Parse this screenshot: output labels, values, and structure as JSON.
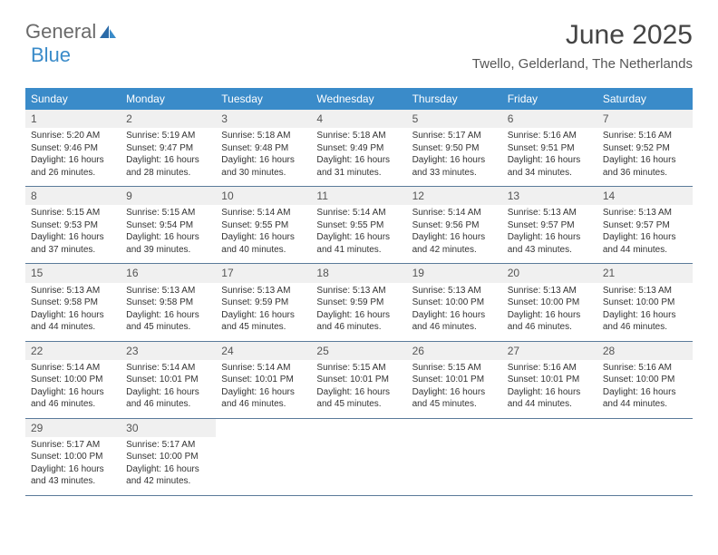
{
  "brand": {
    "part1": "General",
    "part2": "Blue"
  },
  "title": "June 2025",
  "location": "Twello, Gelderland, The Netherlands",
  "colors": {
    "header_bg": "#3a8bc9",
    "header_text": "#ffffff",
    "row_border": "#5a7a9a",
    "daynum_bg": "#f0f0f0",
    "text": "#333333"
  },
  "day_names": [
    "Sunday",
    "Monday",
    "Tuesday",
    "Wednesday",
    "Thursday",
    "Friday",
    "Saturday"
  ],
  "days": [
    {
      "n": "1",
      "sr": "5:20 AM",
      "ss": "9:46 PM",
      "dl": "16 hours and 26 minutes."
    },
    {
      "n": "2",
      "sr": "5:19 AM",
      "ss": "9:47 PM",
      "dl": "16 hours and 28 minutes."
    },
    {
      "n": "3",
      "sr": "5:18 AM",
      "ss": "9:48 PM",
      "dl": "16 hours and 30 minutes."
    },
    {
      "n": "4",
      "sr": "5:18 AM",
      "ss": "9:49 PM",
      "dl": "16 hours and 31 minutes."
    },
    {
      "n": "5",
      "sr": "5:17 AM",
      "ss": "9:50 PM",
      "dl": "16 hours and 33 minutes."
    },
    {
      "n": "6",
      "sr": "5:16 AM",
      "ss": "9:51 PM",
      "dl": "16 hours and 34 minutes."
    },
    {
      "n": "7",
      "sr": "5:16 AM",
      "ss": "9:52 PM",
      "dl": "16 hours and 36 minutes."
    },
    {
      "n": "8",
      "sr": "5:15 AM",
      "ss": "9:53 PM",
      "dl": "16 hours and 37 minutes."
    },
    {
      "n": "9",
      "sr": "5:15 AM",
      "ss": "9:54 PM",
      "dl": "16 hours and 39 minutes."
    },
    {
      "n": "10",
      "sr": "5:14 AM",
      "ss": "9:55 PM",
      "dl": "16 hours and 40 minutes."
    },
    {
      "n": "11",
      "sr": "5:14 AM",
      "ss": "9:55 PM",
      "dl": "16 hours and 41 minutes."
    },
    {
      "n": "12",
      "sr": "5:14 AM",
      "ss": "9:56 PM",
      "dl": "16 hours and 42 minutes."
    },
    {
      "n": "13",
      "sr": "5:13 AM",
      "ss": "9:57 PM",
      "dl": "16 hours and 43 minutes."
    },
    {
      "n": "14",
      "sr": "5:13 AM",
      "ss": "9:57 PM",
      "dl": "16 hours and 44 minutes."
    },
    {
      "n": "15",
      "sr": "5:13 AM",
      "ss": "9:58 PM",
      "dl": "16 hours and 44 minutes."
    },
    {
      "n": "16",
      "sr": "5:13 AM",
      "ss": "9:58 PM",
      "dl": "16 hours and 45 minutes."
    },
    {
      "n": "17",
      "sr": "5:13 AM",
      "ss": "9:59 PM",
      "dl": "16 hours and 45 minutes."
    },
    {
      "n": "18",
      "sr": "5:13 AM",
      "ss": "9:59 PM",
      "dl": "16 hours and 46 minutes."
    },
    {
      "n": "19",
      "sr": "5:13 AM",
      "ss": "10:00 PM",
      "dl": "16 hours and 46 minutes."
    },
    {
      "n": "20",
      "sr": "5:13 AM",
      "ss": "10:00 PM",
      "dl": "16 hours and 46 minutes."
    },
    {
      "n": "21",
      "sr": "5:13 AM",
      "ss": "10:00 PM",
      "dl": "16 hours and 46 minutes."
    },
    {
      "n": "22",
      "sr": "5:14 AM",
      "ss": "10:00 PM",
      "dl": "16 hours and 46 minutes."
    },
    {
      "n": "23",
      "sr": "5:14 AM",
      "ss": "10:01 PM",
      "dl": "16 hours and 46 minutes."
    },
    {
      "n": "24",
      "sr": "5:14 AM",
      "ss": "10:01 PM",
      "dl": "16 hours and 46 minutes."
    },
    {
      "n": "25",
      "sr": "5:15 AM",
      "ss": "10:01 PM",
      "dl": "16 hours and 45 minutes."
    },
    {
      "n": "26",
      "sr": "5:15 AM",
      "ss": "10:01 PM",
      "dl": "16 hours and 45 minutes."
    },
    {
      "n": "27",
      "sr": "5:16 AM",
      "ss": "10:01 PM",
      "dl": "16 hours and 44 minutes."
    },
    {
      "n": "28",
      "sr": "5:16 AM",
      "ss": "10:00 PM",
      "dl": "16 hours and 44 minutes."
    },
    {
      "n": "29",
      "sr": "5:17 AM",
      "ss": "10:00 PM",
      "dl": "16 hours and 43 minutes."
    },
    {
      "n": "30",
      "sr": "5:17 AM",
      "ss": "10:00 PM",
      "dl": "16 hours and 42 minutes."
    }
  ],
  "labels": {
    "sunrise": "Sunrise:",
    "sunset": "Sunset:",
    "daylight": "Daylight:"
  }
}
